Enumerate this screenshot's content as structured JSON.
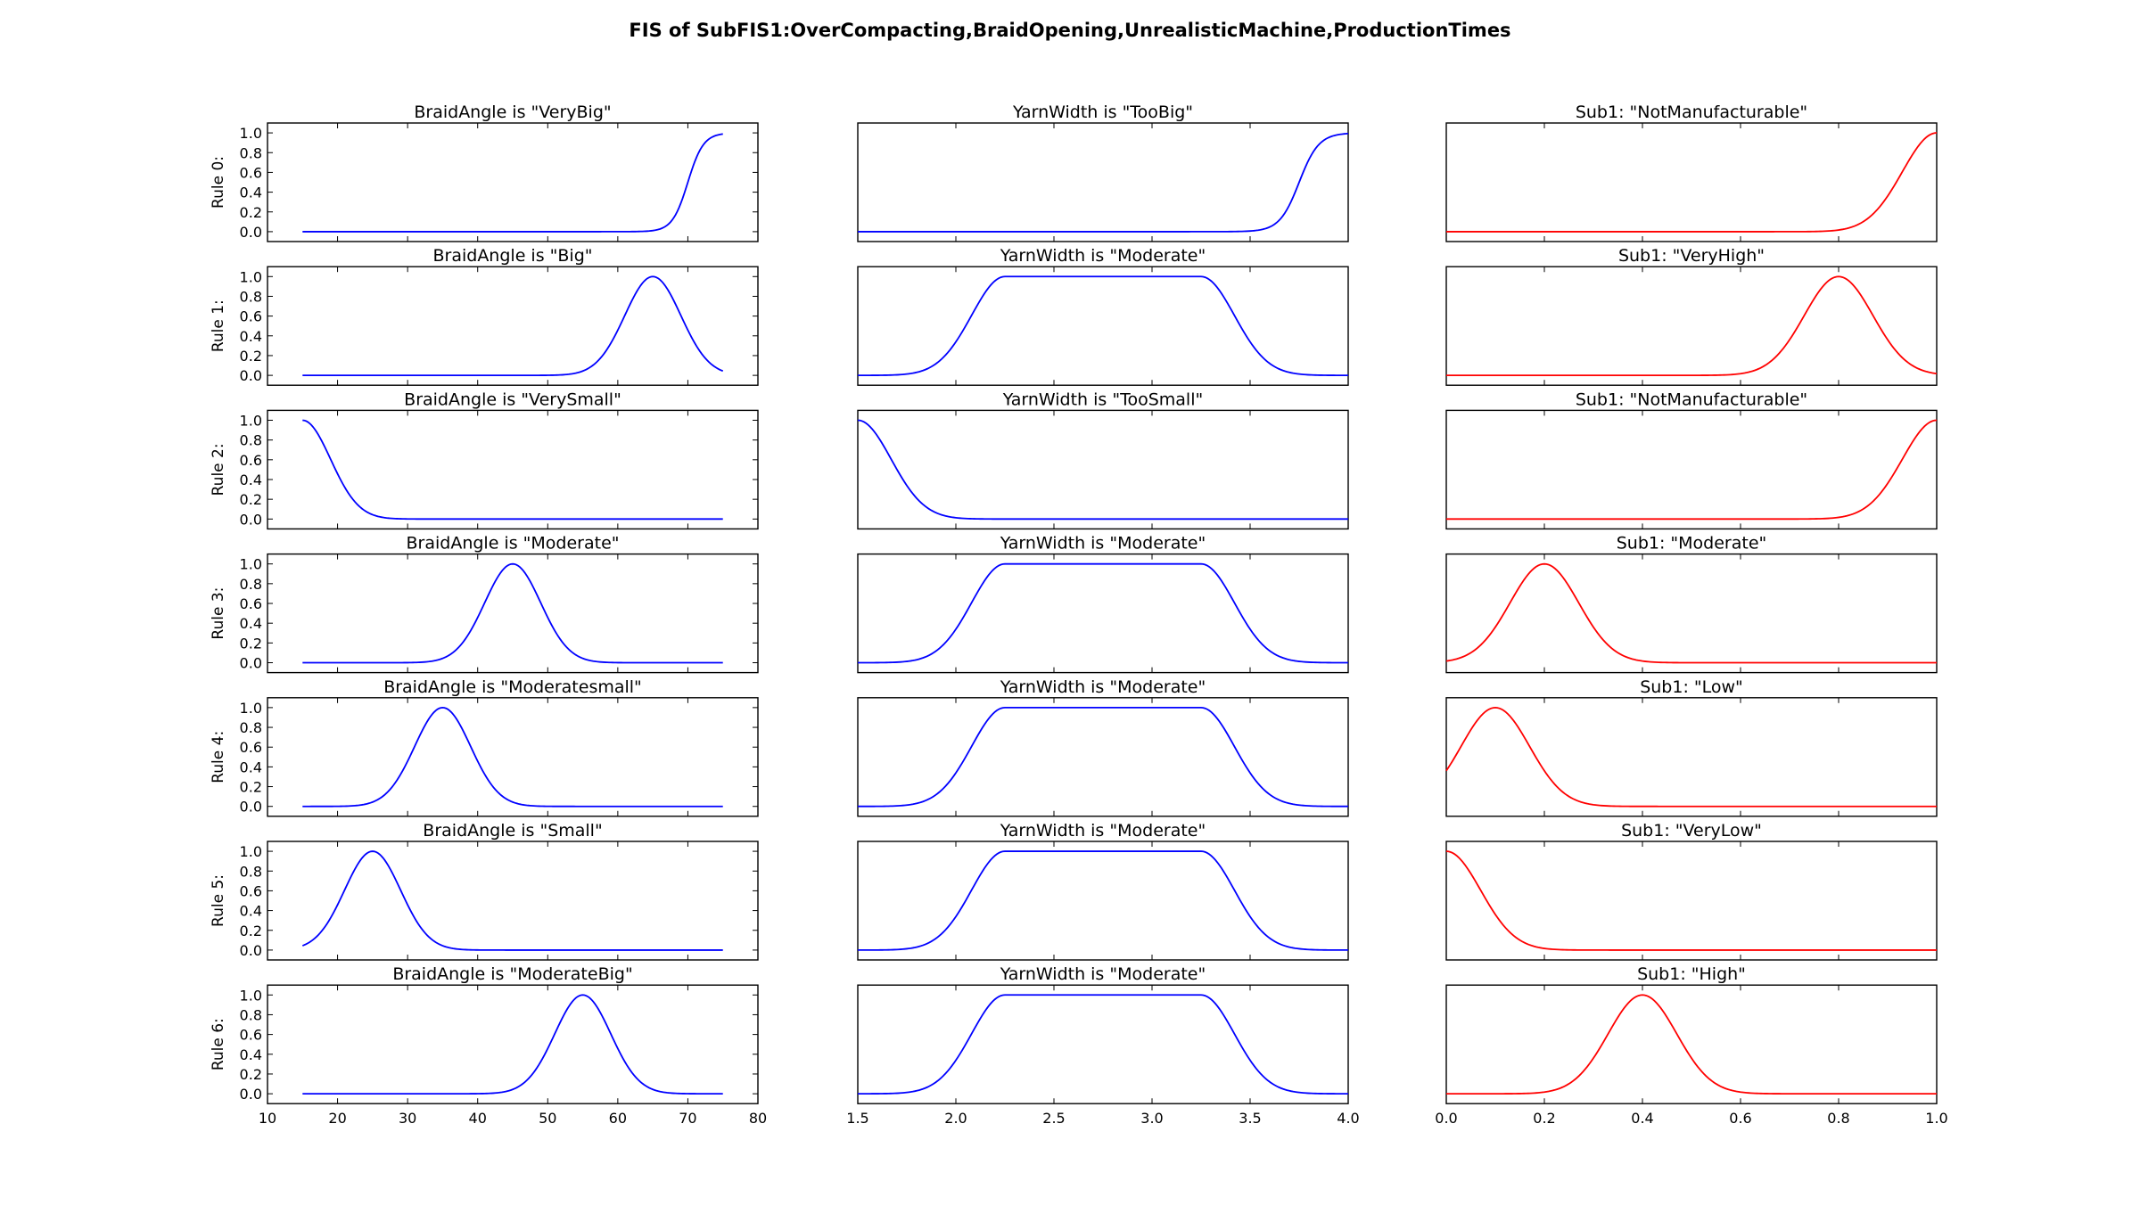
{
  "figure_title": "FIS of SubFIS1:OverCompacting,BraidOpening,UnrealisticMachine,ProductionTimes",
  "colors": {
    "input_line": "#0000ff",
    "output_line": "#ff0000",
    "axes": "#000000",
    "background": "#ffffff"
  },
  "chart_data": [
    {
      "type": "line",
      "column": "input_1",
      "variable": "BraidAngle",
      "xlim": [
        10,
        80
      ],
      "ylim": [
        -0.1,
        1.1
      ],
      "xticks": [
        "10",
        "20",
        "30",
        "40",
        "50",
        "60",
        "70",
        "80"
      ],
      "yticks": [
        "0.0",
        "0.2",
        "0.4",
        "0.6",
        "0.8",
        "1.0"
      ],
      "rows": [
        {
          "ylabel": "Rule 0:",
          "title": "BraidAngle is \"VeryBig\"",
          "mf": "sigmoid",
          "x_range": [
            15,
            75
          ],
          "center": 70,
          "slope": 0.9
        },
        {
          "ylabel": "Rule 1:",
          "title": "BraidAngle is \"Big\"",
          "mf": "gauss",
          "x_range": [
            15,
            75
          ],
          "center": 65,
          "sigma": 4
        },
        {
          "ylabel": "Rule 2:",
          "title": "BraidAngle is \"VerySmall\"",
          "mf": "gauss",
          "x_range": [
            15,
            75
          ],
          "center": 15,
          "sigma": 4
        },
        {
          "ylabel": "Rule 3:",
          "title": "BraidAngle is \"Moderate\"",
          "mf": "gauss",
          "x_range": [
            15,
            75
          ],
          "center": 45,
          "sigma": 4
        },
        {
          "ylabel": "Rule 4:",
          "title": "BraidAngle is \"Moderatesmall\"",
          "mf": "gauss",
          "x_range": [
            15,
            75
          ],
          "center": 35,
          "sigma": 4
        },
        {
          "ylabel": "Rule 5:",
          "title": "BraidAngle is \"Small\"",
          "mf": "gauss",
          "x_range": [
            15,
            75
          ],
          "center": 25,
          "sigma": 4
        },
        {
          "ylabel": "Rule 6:",
          "title": "BraidAngle is \"ModerateBig\"",
          "mf": "gauss",
          "x_range": [
            15,
            75
          ],
          "center": 55,
          "sigma": 4
        }
      ]
    },
    {
      "type": "line",
      "column": "input_2",
      "variable": "YarnWidth",
      "xlim": [
        1.5,
        4.0
      ],
      "ylim": [
        -0.1,
        1.1
      ],
      "xticks": [
        "1.5",
        "2.0",
        "2.5",
        "3.0",
        "3.5",
        "4.0"
      ],
      "rows": [
        {
          "title": "YarnWidth is \"TooBig\"",
          "mf": "sigmoid",
          "x_range": [
            1.5,
            4.0
          ],
          "center": 3.75,
          "slope": 20
        },
        {
          "title": "YarnWidth is \"Moderate\"",
          "mf": "gauss2",
          "x_range": [
            1.5,
            4.0
          ],
          "c1": 2.25,
          "s1": 0.17,
          "c2": 3.25,
          "s2": 0.17
        },
        {
          "title": "YarnWidth is \"TooSmall\"",
          "mf": "gauss",
          "x_range": [
            1.5,
            4.0
          ],
          "center": 1.5,
          "sigma": 0.17
        },
        {
          "title": "YarnWidth is \"Moderate\"",
          "mf": "gauss2",
          "x_range": [
            1.5,
            4.0
          ],
          "c1": 2.25,
          "s1": 0.17,
          "c2": 3.25,
          "s2": 0.17
        },
        {
          "title": "YarnWidth is \"Moderate\"",
          "mf": "gauss2",
          "x_range": [
            1.5,
            4.0
          ],
          "c1": 2.25,
          "s1": 0.17,
          "c2": 3.25,
          "s2": 0.17
        },
        {
          "title": "YarnWidth is \"Moderate\"",
          "mf": "gauss2",
          "x_range": [
            1.5,
            4.0
          ],
          "c1": 2.25,
          "s1": 0.17,
          "c2": 3.25,
          "s2": 0.17
        },
        {
          "title": "YarnWidth is \"Moderate\"",
          "mf": "gauss2",
          "x_range": [
            1.5,
            4.0
          ],
          "c1": 2.25,
          "s1": 0.17,
          "c2": 3.25,
          "s2": 0.17
        }
      ]
    },
    {
      "type": "line",
      "column": "output",
      "variable": "Sub1",
      "xlim": [
        0.0,
        1.0
      ],
      "ylim": [
        -0.1,
        1.1
      ],
      "xticks": [
        "0.0",
        "0.2",
        "0.4",
        "0.6",
        "0.8",
        "1.0"
      ],
      "rows": [
        {
          "title": "Sub1: \"NotManufacturable\"",
          "mf": "gauss",
          "x_range": [
            0,
            1
          ],
          "center": 1.0,
          "sigma": 0.07
        },
        {
          "title": "Sub1: \"VeryHigh\"",
          "mf": "gauss",
          "x_range": [
            0,
            1
          ],
          "center": 0.8,
          "sigma": 0.07
        },
        {
          "title": "Sub1: \"NotManufacturable\"",
          "mf": "gauss",
          "x_range": [
            0,
            1
          ],
          "center": 1.0,
          "sigma": 0.07
        },
        {
          "title": "Sub1: \"Moderate\"",
          "mf": "gauss",
          "x_range": [
            0,
            1
          ],
          "center": 0.2,
          "sigma": 0.07
        },
        {
          "title": "Sub1: \"Low\"",
          "mf": "gauss",
          "x_range": [
            0,
            1
          ],
          "center": 0.1,
          "sigma": 0.07
        },
        {
          "title": "Sub1: \"VeryLow\"",
          "mf": "gauss",
          "x_range": [
            0,
            1
          ],
          "center": 0.0,
          "sigma": 0.07
        },
        {
          "title": "Sub1: \"High\"",
          "mf": "gauss",
          "x_range": [
            0,
            1
          ],
          "center": 0.4,
          "sigma": 0.07
        }
      ]
    }
  ]
}
